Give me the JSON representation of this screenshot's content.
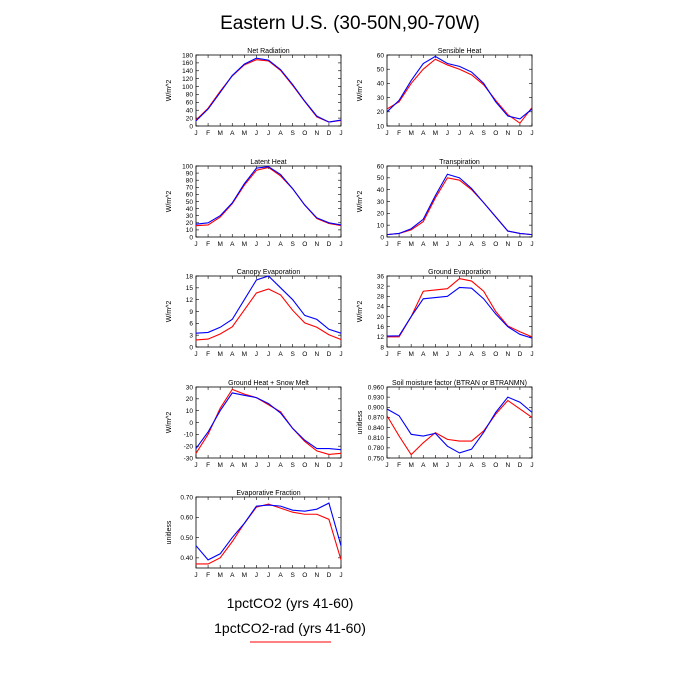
{
  "figure": {
    "title": "Eastern U.S. (30-50N,90-70W)",
    "legend": [
      {
        "label": "1pctCO2 (yrs 41-60)",
        "color": "#0000ff"
      },
      {
        "label": "1pctCO2-rad (yrs 41-60)",
        "color": "#ff0000"
      }
    ]
  },
  "chart_data": [
    {
      "type": "line",
      "title": "Net Radiation",
      "ylabel": "W/m^2",
      "x": [
        "J",
        "F",
        "M",
        "A",
        "M",
        "J",
        "J",
        "A",
        "S",
        "O",
        "N",
        "D",
        "J"
      ],
      "ylim": [
        0,
        180
      ],
      "yticks": [
        0,
        20,
        40,
        60,
        80,
        100,
        120,
        140,
        160,
        180
      ],
      "series": [
        {
          "color": "#0000ff",
          "values": [
            13,
            43,
            85,
            128,
            157,
            172,
            167,
            143,
            105,
            63,
            25,
            10,
            15
          ]
        },
        {
          "color": "#ff0000",
          "values": [
            15,
            45,
            88,
            127,
            155,
            168,
            165,
            141,
            103,
            62,
            23,
            10,
            14
          ]
        }
      ]
    },
    {
      "type": "line",
      "title": "Sensible Heat",
      "ylabel": "W/m^2",
      "x": [
        "J",
        "F",
        "M",
        "A",
        "M",
        "J",
        "J",
        "A",
        "S",
        "O",
        "N",
        "D",
        "J"
      ],
      "ylim": [
        10,
        60
      ],
      "yticks": [
        10,
        20,
        30,
        40,
        50,
        60
      ],
      "series": [
        {
          "color": "#0000ff",
          "values": [
            20,
            28,
            42,
            54,
            59,
            54,
            52,
            48,
            40,
            27,
            17,
            15,
            22
          ]
        },
        {
          "color": "#ff0000",
          "values": [
            22,
            27,
            40,
            50,
            57,
            53,
            50,
            46,
            39,
            28,
            18,
            12,
            23
          ]
        }
      ]
    },
    {
      "type": "line",
      "title": "Latent Heat",
      "ylabel": "W/m^2",
      "x": [
        "J",
        "F",
        "M",
        "A",
        "M",
        "J",
        "J",
        "A",
        "S",
        "O",
        "N",
        "D",
        "J"
      ],
      "ylim": [
        0,
        100
      ],
      "yticks": [
        0,
        10,
        20,
        30,
        40,
        50,
        60,
        70,
        80,
        90,
        100
      ],
      "series": [
        {
          "color": "#0000ff",
          "values": [
            18,
            20,
            30,
            48,
            75,
            97,
            99,
            88,
            68,
            45,
            27,
            20,
            17
          ]
        },
        {
          "color": "#ff0000",
          "values": [
            16,
            17,
            28,
            47,
            73,
            94,
            98,
            86,
            68,
            45,
            26,
            19,
            16
          ]
        }
      ]
    },
    {
      "type": "line",
      "title": "Transpiration",
      "ylabel": "W/m^2",
      "x": [
        "J",
        "F",
        "M",
        "A",
        "M",
        "J",
        "J",
        "A",
        "S",
        "O",
        "N",
        "D",
        "J"
      ],
      "ylim": [
        0,
        60
      ],
      "yticks": [
        0,
        10,
        20,
        30,
        40,
        50,
        60
      ],
      "series": [
        {
          "color": "#0000ff",
          "values": [
            2,
            3,
            7,
            15,
            35,
            53,
            50,
            41,
            29,
            17,
            5,
            3,
            2
          ]
        },
        {
          "color": "#ff0000",
          "values": [
            2,
            3,
            6,
            13,
            33,
            50,
            48,
            40,
            29,
            17,
            5,
            3,
            2
          ]
        }
      ]
    },
    {
      "type": "line",
      "title": "Canopy Evaporation",
      "ylabel": "W/m^2",
      "x": [
        "J",
        "F",
        "M",
        "A",
        "M",
        "J",
        "J",
        "A",
        "S",
        "O",
        "N",
        "D",
        "J"
      ],
      "ylim": [
        0,
        18
      ],
      "yticks": [
        0,
        3,
        6,
        9,
        12,
        15,
        18
      ],
      "series": [
        {
          "color": "#0000ff",
          "values": [
            3.5,
            3.7,
            5,
            7,
            12,
            17,
            18,
            15,
            12,
            8,
            7,
            4.5,
            3.5
          ]
        },
        {
          "color": "#ff0000",
          "values": [
            1.8,
            2,
            3.3,
            5.1,
            9.4,
            13.7,
            14.7,
            13.2,
            9.3,
            6.1,
            5,
            3.1,
            1.9
          ]
        }
      ]
    },
    {
      "type": "line",
      "title": "Ground Evaporation",
      "ylabel": "W/m^2",
      "x": [
        "J",
        "F",
        "M",
        "A",
        "M",
        "J",
        "J",
        "A",
        "S",
        "O",
        "N",
        "D",
        "J"
      ],
      "ylim": [
        8,
        36
      ],
      "yticks": [
        8,
        12,
        16,
        20,
        24,
        28,
        32,
        36
      ],
      "series": [
        {
          "color": "#0000ff",
          "values": [
            12.3,
            12.4,
            20,
            27,
            27.5,
            28,
            31.5,
            31.2,
            27,
            21,
            16,
            13,
            11.5
          ]
        },
        {
          "color": "#ff0000",
          "values": [
            12,
            12,
            20,
            30,
            30.5,
            31,
            35,
            34,
            30,
            22,
            16.3,
            14,
            12
          ]
        }
      ]
    },
    {
      "type": "line",
      "title": "Ground Heat + Snow Melt",
      "ylabel": "W/m^2",
      "x": [
        "J",
        "F",
        "M",
        "A",
        "M",
        "J",
        "J",
        "A",
        "S",
        "O",
        "N",
        "D",
        "J"
      ],
      "ylim": [
        -30,
        30
      ],
      "yticks": [
        -30,
        -20,
        -10,
        0,
        10,
        20,
        30
      ],
      "series": [
        {
          "color": "#0000ff",
          "values": [
            -22,
            -8,
            10,
            25,
            23,
            21,
            16,
            8,
            -5,
            -15,
            -22,
            -22,
            -23
          ]
        },
        {
          "color": "#ff0000",
          "values": [
            -26,
            -10,
            12,
            28,
            24,
            21,
            15,
            9,
            -5,
            -16,
            -24,
            -27,
            -26
          ]
        }
      ]
    },
    {
      "type": "line",
      "title": "Soil moisture factor (BTRAN or BTRANMN)",
      "ylabel": "unitless",
      "x": [
        "J",
        "F",
        "M",
        "A",
        "M",
        "J",
        "J",
        "A",
        "S",
        "O",
        "N",
        "D",
        "J"
      ],
      "ylim": [
        0.75,
        0.96
      ],
      "yticks": [
        0.75,
        0.78,
        0.81,
        0.84,
        0.87,
        0.9,
        0.93,
        0.96
      ],
      "series": [
        {
          "color": "#0000ff",
          "values": [
            0.895,
            0.875,
            0.82,
            0.815,
            0.823,
            0.785,
            0.765,
            0.776,
            0.826,
            0.885,
            0.93,
            0.915,
            0.885
          ]
        },
        {
          "color": "#ff0000",
          "values": [
            0.875,
            0.815,
            0.76,
            0.795,
            0.825,
            0.805,
            0.8,
            0.8,
            0.83,
            0.88,
            0.92,
            0.895,
            0.87
          ]
        }
      ]
    },
    {
      "type": "line",
      "title": "Evaporative Fraction",
      "ylabel": "unitless",
      "x": [
        "J",
        "F",
        "M",
        "A",
        "M",
        "J",
        "J",
        "A",
        "S",
        "O",
        "N",
        "D",
        "J"
      ],
      "ylim": [
        0.35,
        0.7
      ],
      "yticks": [
        0.4,
        0.5,
        0.6,
        0.7
      ],
      "series": [
        {
          "color": "#0000ff",
          "values": [
            0.46,
            0.39,
            0.42,
            0.5,
            0.57,
            0.655,
            0.66,
            0.655,
            0.635,
            0.63,
            0.64,
            0.67,
            0.46
          ]
        },
        {
          "color": "#ff0000",
          "values": [
            0.37,
            0.37,
            0.4,
            0.48,
            0.57,
            0.65,
            0.665,
            0.645,
            0.625,
            0.615,
            0.615,
            0.59,
            0.39
          ]
        }
      ]
    }
  ]
}
